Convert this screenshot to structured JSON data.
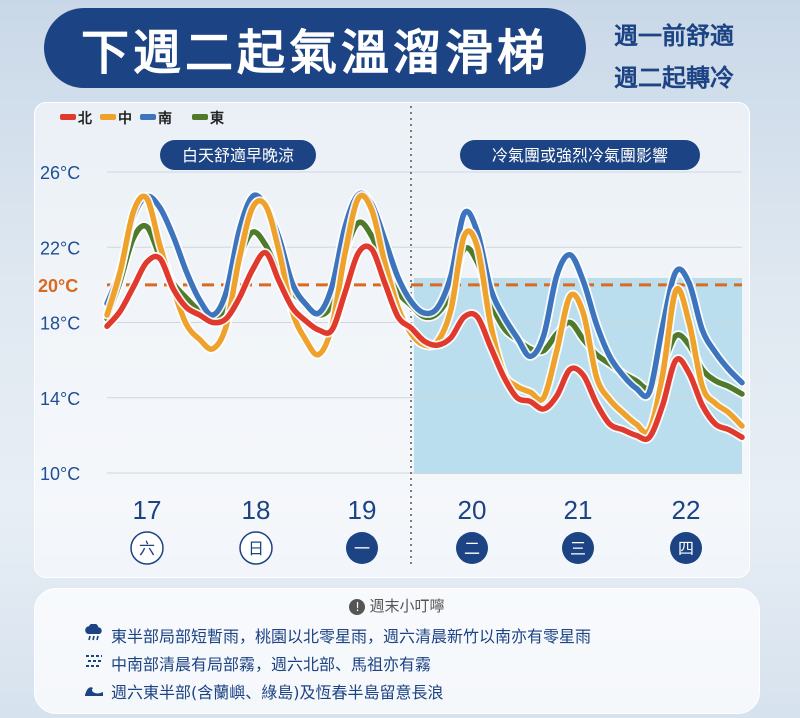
{
  "header": {
    "title": "下週二起氣溫溜滑梯",
    "side_line1": "週一前舒適",
    "side_line2": "週二起轉冷"
  },
  "chart_data": {
    "type": "line",
    "title": "下週二起氣溫溜滑梯",
    "legend_position": "top-left",
    "ylim": [
      10,
      26
    ],
    "yticks": [
      "26°C",
      "22°C",
      "18°C",
      "14°C",
      "10°C"
    ],
    "reference_line": {
      "value": 20,
      "label": "20°C",
      "color": "#d96a1e"
    },
    "days": [
      "17",
      "18",
      "19",
      "20",
      "21",
      "22"
    ],
    "weekday_labels": [
      "六",
      "日",
      "一",
      "二",
      "三",
      "四"
    ],
    "period_labels": [
      "白天舒適早晚涼",
      "冷氣團或強烈冷氣團影響"
    ],
    "series": [
      {
        "name": "北",
        "color": "#e03a2e",
        "values": [
          17.8,
          18.6,
          19.9,
          21.2,
          21.4,
          19.8,
          18.8,
          18.4,
          18.0,
          18.2,
          19.3,
          20.8,
          21.7,
          20.2,
          18.8,
          18.1,
          17.6,
          17.6,
          19.6,
          21.7,
          21.9,
          20.1,
          18.3,
          17.7,
          17.0,
          16.8,
          17.2,
          18.3,
          18.3,
          16.7,
          15.1,
          14.0,
          13.8,
          13.4,
          14.1,
          15.5,
          15.2,
          13.7,
          12.6,
          12.3,
          12.0,
          11.9,
          13.6,
          16.0,
          15.3,
          13.6,
          12.6,
          12.3,
          11.9
        ]
      },
      {
        "name": "中",
        "color": "#eea12b",
        "values": [
          18.4,
          20.7,
          23.9,
          24.6,
          22.1,
          19.8,
          17.9,
          17.1,
          16.6,
          17.8,
          21.4,
          24.1,
          24.2,
          21.8,
          18.6,
          17.1,
          16.3,
          17.8,
          21.7,
          24.6,
          24.0,
          21.2,
          18.8,
          17.4,
          16.8,
          17.0,
          18.7,
          22.6,
          22.0,
          17.9,
          15.3,
          14.6,
          14.3,
          14.0,
          16.5,
          19.4,
          18.5,
          15.1,
          13.9,
          13.2,
          12.6,
          12.3,
          15.2,
          19.7,
          18.0,
          14.6,
          13.7,
          13.2,
          12.5
        ]
      },
      {
        "name": "南",
        "color": "#3c74bd",
        "values": [
          19.0,
          20.8,
          23.6,
          24.7,
          24.1,
          22.6,
          20.7,
          19.2,
          18.4,
          19.6,
          22.9,
          24.7,
          24.2,
          22.5,
          20.1,
          19.0,
          18.5,
          19.9,
          23.1,
          24.8,
          24.3,
          22.4,
          20.4,
          19.1,
          18.5,
          18.8,
          20.5,
          23.8,
          22.8,
          19.8,
          18.3,
          17.2,
          16.2,
          17.3,
          20.5,
          21.6,
          20.2,
          17.9,
          16.2,
          15.2,
          14.5,
          14.3,
          17.8,
          20.7,
          20.1,
          17.6,
          16.4,
          15.5,
          14.8
        ]
      },
      {
        "name": "東",
        "color": "#4f7a2c",
        "values": [
          18.2,
          20.2,
          22.5,
          23.1,
          21.5,
          20.1,
          19.3,
          18.6,
          18.2,
          18.9,
          21.4,
          22.8,
          22.1,
          20.6,
          19.6,
          19.0,
          18.4,
          19.0,
          21.7,
          23.3,
          22.6,
          20.9,
          19.6,
          18.9,
          18.3,
          18.5,
          19.6,
          21.9,
          21.2,
          19.1,
          17.7,
          17.1,
          16.6,
          16.5,
          17.4,
          18.0,
          17.1,
          16.3,
          15.8,
          15.3,
          14.9,
          14.5,
          15.7,
          17.3,
          16.8,
          15.5,
          14.9,
          14.6,
          14.2
        ]
      }
    ]
  },
  "tips": {
    "title": "週末小叮嚀",
    "items": [
      {
        "icon": "rain-cloud-icon",
        "text": "東半部局部短暫雨，桃園以北零星雨，週六清晨新竹以南亦有零星雨"
      },
      {
        "icon": "fog-icon",
        "text": "中南部清晨有局部霧，週六北部、馬祖亦有霧"
      },
      {
        "icon": "wave-icon",
        "text": "週六東半部(含蘭嶼、綠島)及恆春半島留意長浪"
      }
    ]
  }
}
